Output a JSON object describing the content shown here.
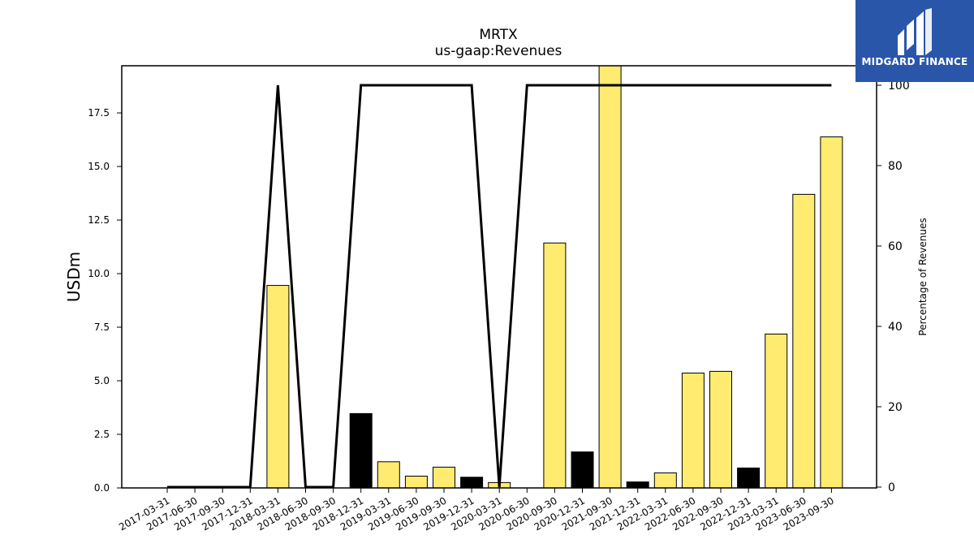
{
  "logo": {
    "text": "MIDGARD FINANCE"
  },
  "colors": {
    "positive": "#ffeb6f",
    "negative": "#000000",
    "line": "#000000"
  },
  "chart_data": {
    "type": "bar",
    "title": "MRTX",
    "subtitle": "us-gaap:Revenues",
    "ylabel": "USDm",
    "y2label": "Percentage of Revenues",
    "ylim": [
      0,
      19.7
    ],
    "y2lim": [
      0,
      100
    ],
    "yticks": [
      "0.0",
      "2.5",
      "5.0",
      "7.5",
      "10.0",
      "12.5",
      "15.0",
      "17.5"
    ],
    "y2ticks": [
      "0",
      "20",
      "40",
      "60",
      "80",
      "100"
    ],
    "categories": [
      "2017-03-31",
      "2017-06-30",
      "2017-09-30",
      "2017-12-31",
      "2018-03-31",
      "2018-06-30",
      "2018-09-30",
      "2018-12-31",
      "2019-03-31",
      "2019-06-30",
      "2019-09-30",
      "2019-12-31",
      "2020-03-31",
      "2020-06-30",
      "2020-09-30",
      "2020-12-31",
      "2021-09-30",
      "2021-12-31",
      "2022-03-31",
      "2022-06-30",
      "2022-09-30",
      "2022-12-31",
      "2023-03-31",
      "2023-06-30",
      "2023-09-30"
    ],
    "series": [
      {
        "type": "bar",
        "axis": "left",
        "values": [
          0,
          0,
          0,
          0,
          9.45,
          0,
          0,
          3.47,
          1.22,
          0.55,
          0.97,
          0.5,
          0.25,
          0,
          11.43,
          1.68,
          19.7,
          0.28,
          0.7,
          5.36,
          5.44,
          0.93,
          7.18,
          13.7,
          16.38
        ],
        "color_by_sign": [
          "positive",
          "positive",
          "positive",
          "positive",
          "positive",
          "positive",
          "positive",
          "negative",
          "positive",
          "positive",
          "positive",
          "negative",
          "positive",
          "positive",
          "positive",
          "negative",
          "positive",
          "negative",
          "positive",
          "positive",
          "positive",
          "negative",
          "positive",
          "positive",
          "positive"
        ]
      },
      {
        "type": "line",
        "axis": "right",
        "values": [
          0,
          0,
          0,
          0,
          100,
          0,
          0,
          100,
          100,
          100,
          100,
          100,
          0,
          100,
          100,
          100,
          100,
          100,
          100,
          100,
          100,
          100,
          100,
          100,
          100
        ]
      }
    ],
    "grid": false
  }
}
